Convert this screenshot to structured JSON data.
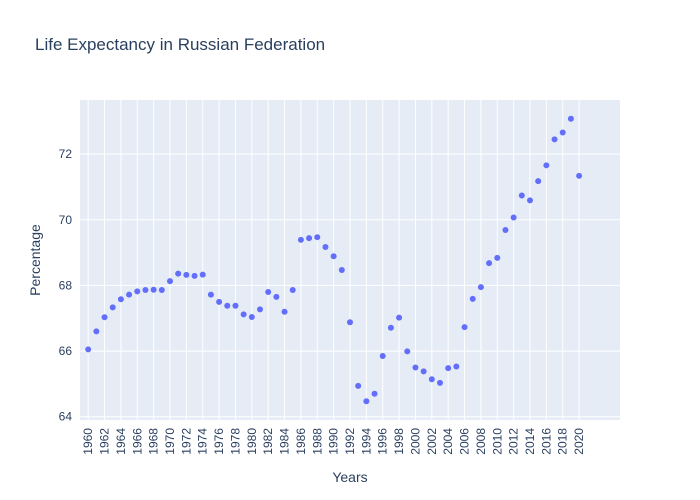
{
  "chart_data": {
    "type": "scatter",
    "title": "Life Expectancy in Russian Federation",
    "xlabel": "Years",
    "ylabel": "Percentage",
    "x_tick_labels": [
      "1960",
      "1962",
      "1964",
      "1966",
      "1968",
      "1970",
      "1972",
      "1974",
      "1976",
      "1978",
      "1980",
      "1982",
      "1984",
      "1986",
      "1988",
      "1990",
      "1992",
      "1994",
      "1996",
      "1998",
      "2000",
      "2002",
      "2004",
      "2006",
      "2008",
      "2010",
      "2012",
      "2014",
      "2016",
      "2018",
      "2020"
    ],
    "y_tick_labels": [
      "64",
      "66",
      "68",
      "70",
      "72"
    ],
    "xlim": [
      1959,
      2025
    ],
    "ylim": [
      63.9,
      73.65
    ],
    "grid": true,
    "marker_color": "#636efa",
    "plot_bg": "#e5ecf6",
    "x": [
      1960,
      1961,
      1962,
      1963,
      1964,
      1965,
      1966,
      1967,
      1968,
      1969,
      1970,
      1971,
      1972,
      1973,
      1974,
      1975,
      1976,
      1977,
      1978,
      1979,
      1980,
      1981,
      1982,
      1983,
      1984,
      1985,
      1986,
      1987,
      1988,
      1989,
      1990,
      1991,
      1992,
      1993,
      1994,
      1995,
      1996,
      1997,
      1998,
      1999,
      2000,
      2001,
      2002,
      2003,
      2004,
      2005,
      2006,
      2007,
      2008,
      2009,
      2010,
      2011,
      2012,
      2013,
      2014,
      2015,
      2016,
      2017,
      2018,
      2019,
      2020
    ],
    "y": [
      66.05,
      66.6,
      67.03,
      67.33,
      67.58,
      67.72,
      67.82,
      67.86,
      67.87,
      67.86,
      68.13,
      68.36,
      68.32,
      68.29,
      68.33,
      67.72,
      67.5,
      67.38,
      67.38,
      67.12,
      67.04,
      67.27,
      67.8,
      67.65,
      67.2,
      67.86,
      69.39,
      69.44,
      69.47,
      69.17,
      68.89,
      68.47,
      66.88,
      64.94,
      64.47,
      64.7,
      65.85,
      66.71,
      67.02,
      65.99,
      65.5,
      65.38,
      65.14,
      65.03,
      65.48,
      65.53,
      66.73,
      67.59,
      67.95,
      68.68,
      68.84,
      69.69,
      70.07,
      70.74,
      70.59,
      71.18,
      71.66,
      72.45,
      72.66,
      73.08,
      71.34
    ]
  }
}
